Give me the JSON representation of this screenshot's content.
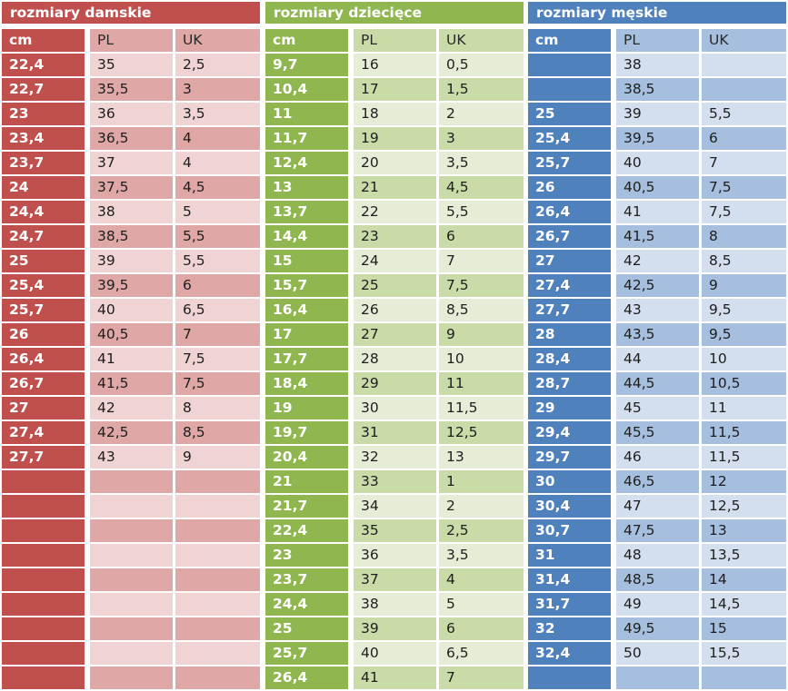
{
  "panels": [
    {
      "title": "rozmiary damskie",
      "accent": "#c0504d",
      "headers": {
        "cm": "cm",
        "pl": "PL",
        "uk": "UK"
      },
      "rows": [
        [
          "22,4",
          "35",
          "2,5"
        ],
        [
          "22,7",
          "35,5",
          "3"
        ],
        [
          "23",
          "36",
          "3,5"
        ],
        [
          "23,4",
          "36,5",
          "4"
        ],
        [
          "23,7",
          "37",
          "4"
        ],
        [
          "24",
          "37,5",
          "4,5"
        ],
        [
          "24,4",
          "38",
          "5"
        ],
        [
          "24,7",
          "38,5",
          "5,5"
        ],
        [
          "25",
          "39",
          "5,5"
        ],
        [
          "25,4",
          "39,5",
          "6"
        ],
        [
          "25,7",
          "40",
          "6,5"
        ],
        [
          "26",
          "40,5",
          "7"
        ],
        [
          "26,4",
          "41",
          "7,5"
        ],
        [
          "26,7",
          "41,5",
          "7,5"
        ],
        [
          "27",
          "42",
          "8"
        ],
        [
          "27,4",
          "42,5",
          "8,5"
        ],
        [
          "27,7",
          "43",
          "9"
        ],
        [
          "",
          "",
          ""
        ],
        [
          "",
          "",
          ""
        ],
        [
          "",
          "",
          ""
        ],
        [
          "",
          "",
          ""
        ],
        [
          "",
          "",
          ""
        ],
        [
          "",
          "",
          ""
        ],
        [
          "",
          "",
          ""
        ],
        [
          "",
          "",
          ""
        ],
        [
          "",
          "",
          ""
        ]
      ]
    },
    {
      "title": "rozmiary dziecięce",
      "accent": "#8fb64f",
      "headers": {
        "cm": "cm",
        "pl": "PL",
        "uk": "UK"
      },
      "rows": [
        [
          "9,7",
          "16",
          "0,5"
        ],
        [
          "10,4",
          "17",
          "1,5"
        ],
        [
          "11",
          "18",
          "2"
        ],
        [
          "11,7",
          "19",
          "3"
        ],
        [
          "12,4",
          "20",
          "3,5"
        ],
        [
          "13",
          "21",
          "4,5"
        ],
        [
          "13,7",
          "22",
          "5,5"
        ],
        [
          "14,4",
          "23",
          "6"
        ],
        [
          "15",
          "24",
          "7"
        ],
        [
          "15,7",
          "25",
          "7,5"
        ],
        [
          "16,4",
          "26",
          "8,5"
        ],
        [
          "17",
          "27",
          "9"
        ],
        [
          "17,7",
          "28",
          "10"
        ],
        [
          "18,4",
          "29",
          "11"
        ],
        [
          "19",
          "30",
          "11,5"
        ],
        [
          "19,7",
          "31",
          "12,5"
        ],
        [
          "20,4",
          "32",
          "13"
        ],
        [
          "21",
          "33",
          "1"
        ],
        [
          "21,7",
          "34",
          "2"
        ],
        [
          "22,4",
          "35",
          "2,5"
        ],
        [
          "23",
          "36",
          "3,5"
        ],
        [
          "23,7",
          "37",
          "4"
        ],
        [
          "24,4",
          "38",
          "5"
        ],
        [
          "25",
          "39",
          "6"
        ],
        [
          "25,7",
          "40",
          "6,5"
        ],
        [
          "26,4",
          "41",
          "7"
        ]
      ]
    },
    {
      "title": "rozmiary męskie",
      "accent": "#4f81bd",
      "headers": {
        "cm": "cm",
        "pl": "PL",
        "uk": "UK"
      },
      "rows": [
        [
          "",
          "38",
          ""
        ],
        [
          "",
          "38,5",
          ""
        ],
        [
          "25",
          "39",
          "5,5"
        ],
        [
          "25,4",
          "39,5",
          "6"
        ],
        [
          "25,7",
          "40",
          "7"
        ],
        [
          "26",
          "40,5",
          "7,5"
        ],
        [
          "26,4",
          "41",
          "7,5"
        ],
        [
          "26,7",
          "41,5",
          "8"
        ],
        [
          "27",
          "42",
          "8,5"
        ],
        [
          "27,4",
          "42,5",
          "9"
        ],
        [
          "27,7",
          "43",
          "9,5"
        ],
        [
          "28",
          "43,5",
          "9,5"
        ],
        [
          "28,4",
          "44",
          "10"
        ],
        [
          "28,7",
          "44,5",
          "10,5"
        ],
        [
          "29",
          "45",
          "11"
        ],
        [
          "29,4",
          "45,5",
          "11,5"
        ],
        [
          "29,7",
          "46",
          "11,5"
        ],
        [
          "30",
          "46,5",
          "12"
        ],
        [
          "30,4",
          "47",
          "12,5"
        ],
        [
          "30,7",
          "47,5",
          "13"
        ],
        [
          "31",
          "48",
          "13,5"
        ],
        [
          "31,4",
          "48,5",
          "14"
        ],
        [
          "31,7",
          "49",
          "14,5"
        ],
        [
          "32",
          "49,5",
          "15"
        ],
        [
          "32,4",
          "50",
          "15,5"
        ],
        [
          "",
          "",
          ""
        ]
      ]
    }
  ]
}
